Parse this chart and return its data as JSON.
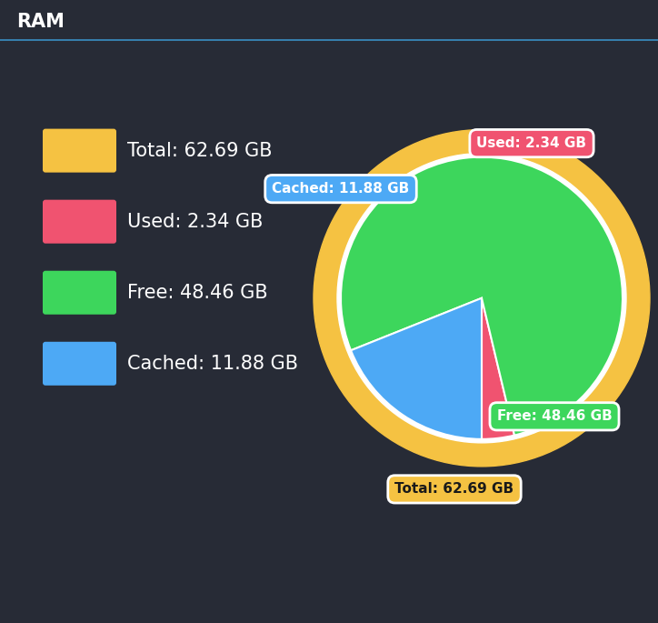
{
  "title": "RAM",
  "background_color": "#272b36",
  "title_bar_color": "#1e222b",
  "border_color": "#3a8fc4",
  "legend": [
    {
      "label": "Total: 62.69 GB",
      "color": "#f5c242"
    },
    {
      "label": "Used: 2.34 GB",
      "color": "#f05370"
    },
    {
      "label": "Free: 48.46 GB",
      "color": "#3dd65c"
    },
    {
      "label": "Cached: 11.88 GB",
      "color": "#4da9f5"
    }
  ],
  "pie_slices": [
    {
      "label": "Used: 2.34 GB",
      "value": 2.34,
      "color": "#f05370"
    },
    {
      "label": "Free: 48.46 GB",
      "value": 48.46,
      "color": "#3dd65c"
    },
    {
      "label": "Cached: 11.88 GB",
      "value": 11.88,
      "color": "#4da9f5"
    }
  ],
  "total_gb": 62.69,
  "total_color": "#f5c242",
  "annotation_labels": [
    {
      "text": "Used: 2.34 GB",
      "color": "#f05370"
    },
    {
      "text": "Free: 48.46 GB",
      "color": "#3dd65c"
    },
    {
      "text": "Cached: 11.88 GB",
      "color": "#4da9f5"
    },
    {
      "text": "Total: 62.69 GB",
      "color": "#f5c242"
    }
  ]
}
